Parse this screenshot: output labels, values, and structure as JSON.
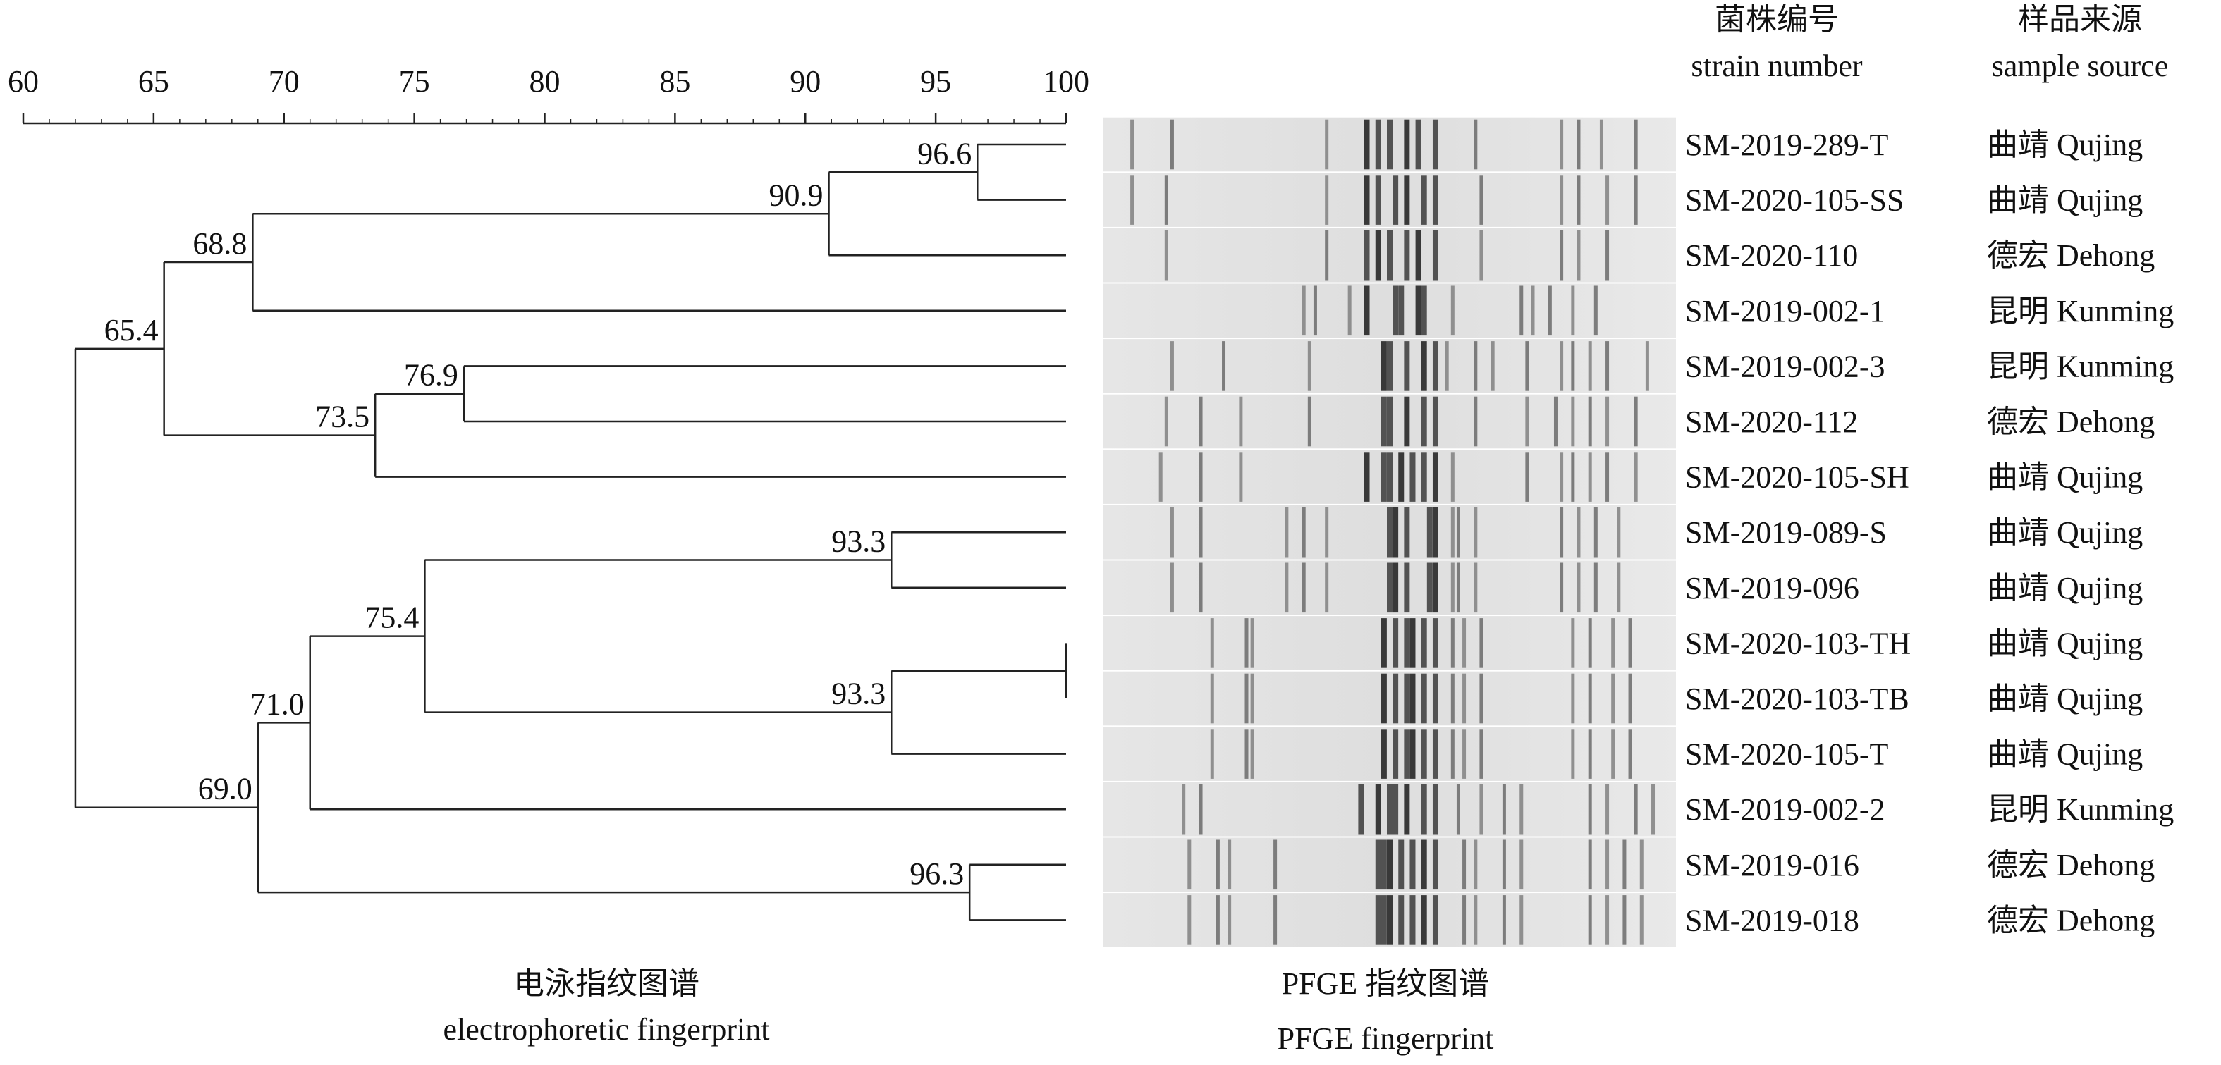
{
  "chart_data": {
    "type": "dendrogram",
    "axis": {
      "ticks": [
        60,
        65,
        70,
        75,
        80,
        85,
        90,
        95,
        100
      ],
      "range": [
        60,
        100
      ]
    },
    "header": {
      "strain_cn": "菌株编号",
      "strain_en": "strain number",
      "source_cn": "样品来源",
      "source_en": "sample source"
    },
    "strains": [
      {
        "id": "SM-2019-289-T",
        "source": "曲靖 Qujing"
      },
      {
        "id": "SM-2020-105-SS",
        "source": "曲靖 Qujing"
      },
      {
        "id": "SM-2020-110",
        "source": "德宏 Dehong"
      },
      {
        "id": "SM-2019-002-1",
        "source": "昆明 Kunming"
      },
      {
        "id": "SM-2019-002-3",
        "source": "昆明 Kunming"
      },
      {
        "id": "SM-2020-112",
        "source": "德宏 Dehong"
      },
      {
        "id": "SM-2020-105-SH",
        "source": "曲靖 Qujing"
      },
      {
        "id": "SM-2019-089-S",
        "source": "曲靖 Qujing"
      },
      {
        "id": "SM-2019-096",
        "source": "曲靖 Qujing"
      },
      {
        "id": "SM-2020-103-TH",
        "source": "曲靖 Qujing"
      },
      {
        "id": "SM-2020-103-TB",
        "source": "曲靖 Qujing"
      },
      {
        "id": "SM-2020-105-T",
        "source": "曲靖 Qujing"
      },
      {
        "id": "SM-2019-002-2",
        "source": "昆明 Kunming"
      },
      {
        "id": "SM-2019-016",
        "source": "德宏 Dehong"
      },
      {
        "id": "SM-2019-018",
        "source": "德宏 Dehong"
      }
    ],
    "nodes": [
      {
        "id": "n1",
        "sim": 96.6,
        "label": "96.6",
        "children": [
          0,
          1
        ]
      },
      {
        "id": "n2",
        "sim": 90.9,
        "label": "90.9",
        "children": [
          "n1",
          2
        ]
      },
      {
        "id": "n3",
        "sim": 68.8,
        "label": "68.8",
        "children": [
          "n2",
          3
        ]
      },
      {
        "id": "n4",
        "sim": 76.9,
        "label": "76.9",
        "children": [
          4,
          5
        ]
      },
      {
        "id": "n5",
        "sim": 73.5,
        "label": "73.5",
        "children": [
          "n4",
          6
        ]
      },
      {
        "id": "n6",
        "sim": 65.4,
        "label": "65.4",
        "children": [
          "n3",
          "n5"
        ]
      },
      {
        "id": "n7",
        "sim": 93.3,
        "label": "93.3",
        "children": [
          7,
          8
        ]
      },
      {
        "id": "n8",
        "sim": 100,
        "label": "",
        "children": [
          9,
          10
        ]
      },
      {
        "id": "n9",
        "sim": 93.3,
        "label": "93.3",
        "children": [
          "n8",
          11
        ]
      },
      {
        "id": "n10",
        "sim": 75.4,
        "label": "75.4",
        "children": [
          "n7",
          "n9"
        ]
      },
      {
        "id": "n11",
        "sim": 71.0,
        "label": "71.0",
        "children": [
          "n10",
          12
        ]
      },
      {
        "id": "n12",
        "sim": 96.3,
        "label": "96.3",
        "children": [
          13,
          14
        ]
      },
      {
        "id": "n13",
        "sim": 69.0,
        "label": "69.0",
        "children": [
          "n11",
          "n12"
        ]
      },
      {
        "id": "n14",
        "sim": 62.0,
        "label": "",
        "children": [
          "n6",
          "n13"
        ]
      }
    ],
    "lane_bands": [
      [
        0.05,
        0.12,
        0.39,
        0.46,
        0.48,
        0.5,
        0.53,
        0.55,
        0.58,
        0.65,
        0.8,
        0.83,
        0.87,
        0.93
      ],
      [
        0.05,
        0.11,
        0.39,
        0.46,
        0.48,
        0.51,
        0.53,
        0.56,
        0.58,
        0.66,
        0.8,
        0.83,
        0.88,
        0.93
      ],
      [
        0.11,
        0.39,
        0.46,
        0.48,
        0.5,
        0.53,
        0.55,
        0.58,
        0.66,
        0.8,
        0.83,
        0.88
      ],
      [
        0.35,
        0.37,
        0.43,
        0.46,
        0.51,
        0.52,
        0.55,
        0.56,
        0.61,
        0.73,
        0.75,
        0.78,
        0.82,
        0.86
      ],
      [
        0.12,
        0.21,
        0.36,
        0.49,
        0.5,
        0.53,
        0.56,
        0.58,
        0.6,
        0.65,
        0.68,
        0.74,
        0.8,
        0.82,
        0.85,
        0.88,
        0.95
      ],
      [
        0.11,
        0.17,
        0.24,
        0.36,
        0.49,
        0.5,
        0.53,
        0.56,
        0.58,
        0.65,
        0.74,
        0.79,
        0.82,
        0.85,
        0.88,
        0.93
      ],
      [
        0.1,
        0.17,
        0.24,
        0.46,
        0.49,
        0.5,
        0.52,
        0.54,
        0.56,
        0.58,
        0.61,
        0.74,
        0.8,
        0.82,
        0.85,
        0.88,
        0.93
      ],
      [
        0.12,
        0.17,
        0.32,
        0.35,
        0.39,
        0.5,
        0.51,
        0.53,
        0.57,
        0.58,
        0.61,
        0.62,
        0.65,
        0.8,
        0.83,
        0.86,
        0.9
      ],
      [
        0.12,
        0.17,
        0.32,
        0.35,
        0.39,
        0.5,
        0.51,
        0.53,
        0.57,
        0.58,
        0.61,
        0.62,
        0.65,
        0.8,
        0.83,
        0.86,
        0.9
      ],
      [
        0.19,
        0.25,
        0.26,
        0.49,
        0.51,
        0.53,
        0.54,
        0.56,
        0.58,
        0.61,
        0.63,
        0.66,
        0.82,
        0.85,
        0.89,
        0.92
      ],
      [
        0.19,
        0.25,
        0.26,
        0.49,
        0.51,
        0.53,
        0.54,
        0.56,
        0.58,
        0.61,
        0.63,
        0.66,
        0.82,
        0.85,
        0.89,
        0.92
      ],
      [
        0.19,
        0.25,
        0.26,
        0.49,
        0.51,
        0.53,
        0.54,
        0.56,
        0.58,
        0.61,
        0.63,
        0.66,
        0.82,
        0.85,
        0.89,
        0.92
      ],
      [
        0.14,
        0.17,
        0.45,
        0.48,
        0.5,
        0.51,
        0.53,
        0.56,
        0.58,
        0.62,
        0.66,
        0.7,
        0.73,
        0.85,
        0.88,
        0.93,
        0.96
      ],
      [
        0.15,
        0.2,
        0.22,
        0.3,
        0.48,
        0.49,
        0.5,
        0.52,
        0.54,
        0.56,
        0.58,
        0.63,
        0.65,
        0.7,
        0.73,
        0.85,
        0.88,
        0.91,
        0.94
      ],
      [
        0.15,
        0.2,
        0.22,
        0.3,
        0.48,
        0.49,
        0.5,
        0.52,
        0.54,
        0.56,
        0.58,
        0.63,
        0.65,
        0.7,
        0.73,
        0.85,
        0.88,
        0.91,
        0.94
      ]
    ],
    "caption_left_cn": "电泳指纹图谱",
    "caption_left_en": "electrophoretic fingerprint",
    "caption_mid_cn": "PFGE 指纹图谱",
    "caption_mid_en": "PFGE fingerprint"
  }
}
